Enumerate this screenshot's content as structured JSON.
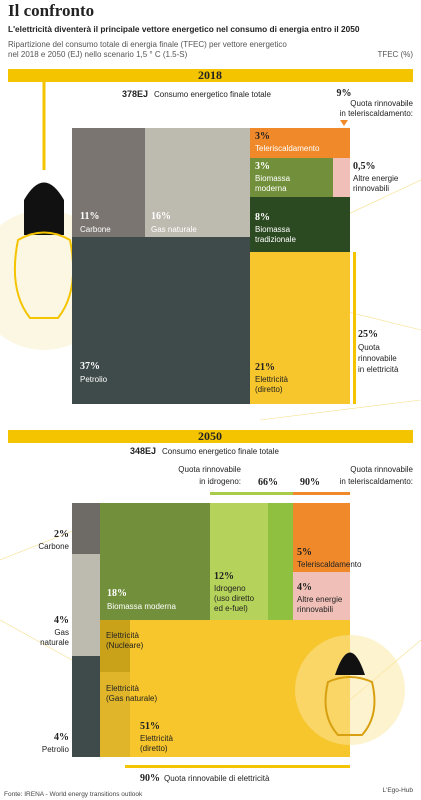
{
  "header": {
    "title": "Il confronto",
    "subtitle": "L'elettricità diventerà il principale vettore energetico nel consumo di energia entro il 2050",
    "description": [
      "Ripartizione del consumo totale di energia finale (TFEC) per vettore energetico",
      "nel 2018 e 2050 (EJ) nello scenario 1,5 ° C (1.5-S)"
    ],
    "unit": "TFEC (%)"
  },
  "s2018": {
    "year": "2018",
    "total": "378EJ",
    "total_label": "Consumo energetico finale totale",
    "blocks": [
      {
        "value": "11%",
        "label": [
          "Carbone"
        ]
      },
      {
        "value": "16%",
        "label": [
          "Gas naturale"
        ]
      },
      {
        "value": "37%",
        "label": [
          "Petrolio"
        ]
      },
      {
        "value": "3%",
        "label": [
          "Teleriscaldamento"
        ]
      },
      {
        "value": "3%",
        "label": [
          "Biomassa",
          "moderna"
        ]
      },
      {
        "value": "0,5%",
        "label": [
          "Altre energie",
          "rinnovabili"
        ]
      },
      {
        "value": "8%",
        "label": [
          "Biomassa",
          "tradizionale"
        ]
      },
      {
        "value": "21%",
        "label": [
          "Elettricità",
          "(diretto)"
        ]
      }
    ],
    "notes": [
      {
        "value": "9%",
        "label": [
          "Quota rinnovabile",
          "in teleriscaldamento:"
        ]
      },
      {
        "value": "25%",
        "label": [
          "Quota",
          "rinnovabile",
          "in elettricità"
        ]
      }
    ]
  },
  "s2050": {
    "year": "2050",
    "total": "348EJ",
    "total_label": "Consumo energetico finale totale",
    "blocks": [
      {
        "value": "2%",
        "label": [
          "Carbone"
        ]
      },
      {
        "value": "4%",
        "label": [
          "Gas",
          "naturale"
        ]
      },
      {
        "value": "4%",
        "label": [
          "Petrolio"
        ]
      },
      {
        "value": "18%",
        "label": [
          "Biomassa moderna"
        ]
      },
      {
        "value": "12%",
        "label": [
          "Idrogeno",
          "(uso diretto",
          "ed e-fuel)"
        ]
      },
      {
        "value": "5%",
        "label": [
          "Teleriscaldamento"
        ]
      },
      {
        "value": "4%",
        "label": [
          "Altre energie",
          "rinnovabili"
        ]
      },
      {
        "value": "51%",
        "label": [
          "Elettricità",
          "(diretto)"
        ]
      }
    ],
    "extra": [
      [
        "Elettricità",
        "(Nucleare)"
      ],
      [
        "Elettricità",
        "(Gas naturale)"
      ]
    ],
    "notes": [
      {
        "value": "66%",
        "label": [
          "Quota rinnovabile",
          "in idrogeno:"
        ]
      },
      {
        "value": "90%",
        "label": [
          "Quota rinnovabile",
          "in teleriscaldamento:"
        ]
      },
      {
        "value": "90%",
        "label": [
          "Quota rinnovabile di elettricità"
        ]
      }
    ]
  },
  "footer": {
    "source": "Fonte: IRENA - World energy transitions outlook",
    "credit": "L'Ego-Hub"
  }
}
